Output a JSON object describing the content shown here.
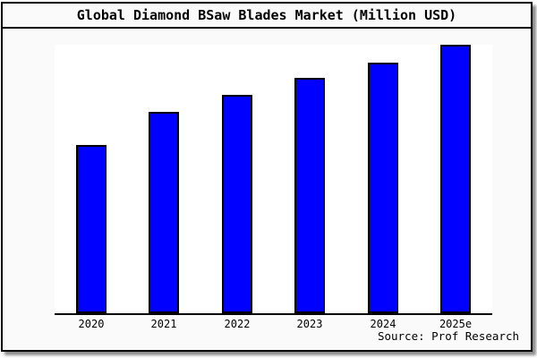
{
  "title": "Global Diamond BSaw Blades Market (Million USD)",
  "source": "Source: Prof Research",
  "colors": {
    "bar_fill": "#0000ff",
    "bar_border": "#000000",
    "figure_background": "#fafafa",
    "plot_background": "#ffffff",
    "frame_border": "#000000"
  },
  "chart_data": {
    "type": "bar",
    "title": "Global Diamond BSaw Blades Market (Million USD)",
    "categories": [
      "2020",
      "2021",
      "2022",
      "2023",
      "2024",
      "2025e"
    ],
    "values": [
      188,
      225,
      244,
      263,
      280,
      300
    ],
    "values_note": "relative units estimated from bar pixel heights; chart shows no y-axis scale or data labels",
    "xlabel": "",
    "ylabel": "",
    "ylim": [
      0,
      300
    ],
    "grid": false,
    "legend": false,
    "source_note": "Source: Prof Research"
  }
}
